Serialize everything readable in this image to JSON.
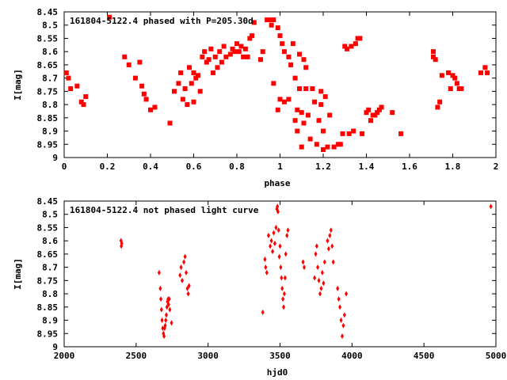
{
  "chart_data": [
    {
      "type": "scatter",
      "title": "161804-5122.4 phased with P=205.30d",
      "xlabel": "phase",
      "ylabel": "I[mag]",
      "xlim": [
        0,
        2
      ],
      "ylim": [
        9,
        8.45
      ],
      "inverted_y": true,
      "grid": false,
      "marker_color": "#ff0000",
      "marker": "square",
      "x_ticks": [
        "0",
        "0.2",
        "0.4",
        "0.6",
        "0.8",
        "1",
        "1.2",
        "1.4",
        "1.6",
        "1.8",
        "2"
      ],
      "y_ticks": [
        "8.45",
        "8.5",
        "8.55",
        "8.6",
        "8.65",
        "8.7",
        "8.75",
        "8.8",
        "8.85",
        "8.9",
        "8.95",
        "9"
      ],
      "series": [
        {
          "points": [
            [
              0.01,
              8.68
            ],
            [
              0.02,
              8.7
            ],
            [
              0.03,
              8.74
            ],
            [
              0.06,
              8.73
            ],
            [
              0.08,
              8.79
            ],
            [
              0.09,
              8.8
            ],
            [
              0.1,
              8.77
            ],
            [
              0.21,
              8.47
            ],
            [
              0.28,
              8.62
            ],
            [
              0.3,
              8.65
            ],
            [
              0.33,
              8.7
            ],
            [
              0.35,
              8.64
            ],
            [
              0.36,
              8.73
            ],
            [
              0.37,
              8.76
            ],
            [
              0.38,
              8.78
            ],
            [
              0.4,
              8.82
            ],
            [
              0.42,
              8.81
            ],
            [
              0.49,
              8.87
            ],
            [
              0.51,
              8.75
            ],
            [
              0.53,
              8.72
            ],
            [
              0.54,
              8.68
            ],
            [
              0.55,
              8.78
            ],
            [
              0.56,
              8.74
            ],
            [
              0.57,
              8.8
            ],
            [
              0.58,
              8.66
            ],
            [
              0.59,
              8.72
            ],
            [
              0.6,
              8.68
            ],
            [
              0.6,
              8.79
            ],
            [
              0.61,
              8.7
            ],
            [
              0.62,
              8.69
            ],
            [
              0.63,
              8.75
            ],
            [
              0.64,
              8.62
            ],
            [
              0.65,
              8.6
            ],
            [
              0.66,
              8.64
            ],
            [
              0.67,
              8.63
            ],
            [
              0.68,
              8.59
            ],
            [
              0.69,
              8.68
            ],
            [
              0.7,
              8.62
            ],
            [
              0.71,
              8.66
            ],
            [
              0.72,
              8.6
            ],
            [
              0.73,
              8.64
            ],
            [
              0.74,
              8.58
            ],
            [
              0.75,
              8.62
            ],
            [
              0.77,
              8.61
            ],
            [
              0.78,
              8.59
            ],
            [
              0.79,
              8.6
            ],
            [
              0.8,
              8.57
            ],
            [
              0.81,
              8.6
            ],
            [
              0.82,
              8.58
            ],
            [
              0.83,
              8.62
            ],
            [
              0.84,
              8.59
            ],
            [
              0.85,
              8.62
            ],
            [
              0.86,
              8.55
            ],
            [
              0.87,
              8.54
            ],
            [
              0.88,
              8.49
            ],
            [
              0.91,
              8.63
            ],
            [
              0.92,
              8.6
            ],
            [
              0.94,
              8.48
            ],
            [
              0.95,
              8.48
            ],
            [
              0.96,
              8.5
            ],
            [
              0.97,
              8.72
            ],
            [
              0.97,
              8.48
            ],
            [
              0.99,
              8.51
            ],
            [
              0.99,
              8.82
            ],
            [
              1.0,
              8.78
            ],
            [
              1.0,
              8.54
            ],
            [
              1.01,
              8.57
            ],
            [
              1.02,
              8.6
            ],
            [
              1.02,
              8.79
            ],
            [
              1.04,
              8.78
            ],
            [
              1.04,
              8.62
            ],
            [
              1.05,
              8.65
            ],
            [
              1.06,
              8.57
            ],
            [
              1.07,
              8.7
            ],
            [
              1.07,
              8.86
            ],
            [
              1.08,
              8.82
            ],
            [
              1.08,
              8.9
            ],
            [
              1.09,
              8.74
            ],
            [
              1.09,
              8.61
            ],
            [
              1.1,
              8.96
            ],
            [
              1.1,
              8.83
            ],
            [
              1.11,
              8.63
            ],
            [
              1.11,
              8.87
            ],
            [
              1.12,
              8.66
            ],
            [
              1.12,
              8.74
            ],
            [
              1.13,
              8.84
            ],
            [
              1.14,
              8.93
            ],
            [
              1.15,
              8.74
            ],
            [
              1.16,
              8.79
            ],
            [
              1.17,
              8.95
            ],
            [
              1.18,
              8.86
            ],
            [
              1.19,
              8.8
            ],
            [
              1.19,
              8.75
            ],
            [
              1.2,
              8.9
            ],
            [
              1.2,
              8.97
            ],
            [
              1.21,
              8.77
            ],
            [
              1.22,
              8.96
            ],
            [
              1.23,
              8.84
            ],
            [
              1.25,
              8.96
            ],
            [
              1.27,
              8.95
            ],
            [
              1.28,
              8.95
            ],
            [
              1.29,
              8.91
            ],
            [
              1.3,
              8.58
            ],
            [
              1.31,
              8.59
            ],
            [
              1.32,
              8.91
            ],
            [
              1.33,
              8.58
            ],
            [
              1.34,
              8.9
            ],
            [
              1.35,
              8.57
            ],
            [
              1.36,
              8.55
            ],
            [
              1.37,
              8.55
            ],
            [
              1.38,
              8.91
            ],
            [
              1.4,
              8.83
            ],
            [
              1.41,
              8.82
            ],
            [
              1.42,
              8.86
            ],
            [
              1.43,
              8.84
            ],
            [
              1.44,
              8.84
            ],
            [
              1.45,
              8.83
            ],
            [
              1.46,
              8.82
            ],
            [
              1.47,
              8.81
            ],
            [
              1.52,
              8.83
            ],
            [
              1.56,
              8.91
            ],
            [
              1.71,
              8.62
            ],
            [
              1.71,
              8.6
            ],
            [
              1.72,
              8.63
            ],
            [
              1.73,
              8.81
            ],
            [
              1.74,
              8.79
            ],
            [
              1.75,
              8.69
            ],
            [
              1.78,
              8.68
            ],
            [
              1.79,
              8.74
            ],
            [
              1.8,
              8.69
            ],
            [
              1.81,
              8.7
            ],
            [
              1.82,
              8.72
            ],
            [
              1.83,
              8.74
            ],
            [
              1.84,
              8.74
            ],
            [
              1.93,
              8.68
            ],
            [
              1.95,
              8.66
            ],
            [
              1.96,
              8.68
            ]
          ]
        }
      ]
    },
    {
      "type": "scatter",
      "title": "161804-5122.4 not phased light curve",
      "xlabel": "hjd0",
      "ylabel": "I[mag]",
      "xlim": [
        2000,
        5000
      ],
      "ylim": [
        9,
        8.45
      ],
      "inverted_y": true,
      "grid": false,
      "marker_color": "#ff0000",
      "marker": "diamond",
      "x_ticks": [
        "2000",
        "2500",
        "3000",
        "3500",
        "4000",
        "4500",
        "5000"
      ],
      "y_ticks": [
        "8.45",
        "8.5",
        "8.55",
        "8.6",
        "8.65",
        "8.7",
        "8.75",
        "8.8",
        "8.85",
        "8.9",
        "8.95",
        "9"
      ],
      "series": [
        {
          "points": [
            [
              2395,
              8.6
            ],
            [
              2397,
              8.62
            ],
            [
              2400,
              8.61
            ],
            [
              2660,
              8.72
            ],
            [
              2668,
              8.78
            ],
            [
              2672,
              8.82
            ],
            [
              2676,
              8.86
            ],
            [
              2680,
              8.9
            ],
            [
              2685,
              8.93
            ],
            [
              2690,
              8.95
            ],
            [
              2694,
              8.96
            ],
            [
              2698,
              8.93
            ],
            [
              2702,
              8.92
            ],
            [
              2706,
              8.9
            ],
            [
              2710,
              8.88
            ],
            [
              2714,
              8.85
            ],
            [
              2718,
              8.83
            ],
            [
              2722,
              8.82
            ],
            [
              2726,
              8.84
            ],
            [
              2730,
              8.82
            ],
            [
              2734,
              8.86
            ],
            [
              2746,
              8.91
            ],
            [
              2805,
              8.73
            ],
            [
              2812,
              8.7
            ],
            [
              2820,
              8.75
            ],
            [
              2832,
              8.68
            ],
            [
              2840,
              8.66
            ],
            [
              2848,
              8.72
            ],
            [
              2856,
              8.78
            ],
            [
              2862,
              8.8
            ],
            [
              2868,
              8.77
            ],
            [
              3380,
              8.87
            ],
            [
              3395,
              8.67
            ],
            [
              3400,
              8.7
            ],
            [
              3408,
              8.72
            ],
            [
              3420,
              8.58
            ],
            [
              3432,
              8.62
            ],
            [
              3440,
              8.6
            ],
            [
              3448,
              8.64
            ],
            [
              3456,
              8.57
            ],
            [
              3464,
              8.61
            ],
            [
              3472,
              8.55
            ],
            [
              3478,
              8.48
            ],
            [
              3482,
              8.47
            ],
            [
              3486,
              8.49
            ],
            [
              3490,
              8.56
            ],
            [
              3495,
              8.66
            ],
            [
              3500,
              8.62
            ],
            [
              3505,
              8.7
            ],
            [
              3510,
              8.74
            ],
            [
              3515,
              8.78
            ],
            [
              3520,
              8.82
            ],
            [
              3525,
              8.85
            ],
            [
              3530,
              8.8
            ],
            [
              3535,
              8.74
            ],
            [
              3540,
              8.65
            ],
            [
              3548,
              8.58
            ],
            [
              3555,
              8.56
            ],
            [
              3660,
              8.68
            ],
            [
              3668,
              8.7
            ],
            [
              3740,
              8.74
            ],
            [
              3748,
              8.65
            ],
            [
              3755,
              8.62
            ],
            [
              3762,
              8.7
            ],
            [
              3770,
              8.75
            ],
            [
              3778,
              8.8
            ],
            [
              3786,
              8.78
            ],
            [
              3794,
              8.72
            ],
            [
              3802,
              8.76
            ],
            [
              3810,
              8.68
            ],
            [
              3830,
              8.6
            ],
            [
              3838,
              8.63
            ],
            [
              3846,
              8.58
            ],
            [
              3854,
              8.56
            ],
            [
              3862,
              8.62
            ],
            [
              3870,
              8.68
            ],
            [
              3900,
              8.78
            ],
            [
              3908,
              8.82
            ],
            [
              3916,
              8.85
            ],
            [
              3924,
              8.9
            ],
            [
              3932,
              8.96
            ],
            [
              3940,
              8.92
            ],
            [
              3948,
              8.88
            ],
            [
              3960,
              8.8
            ],
            [
              4965,
              8.47
            ]
          ]
        }
      ]
    }
  ]
}
